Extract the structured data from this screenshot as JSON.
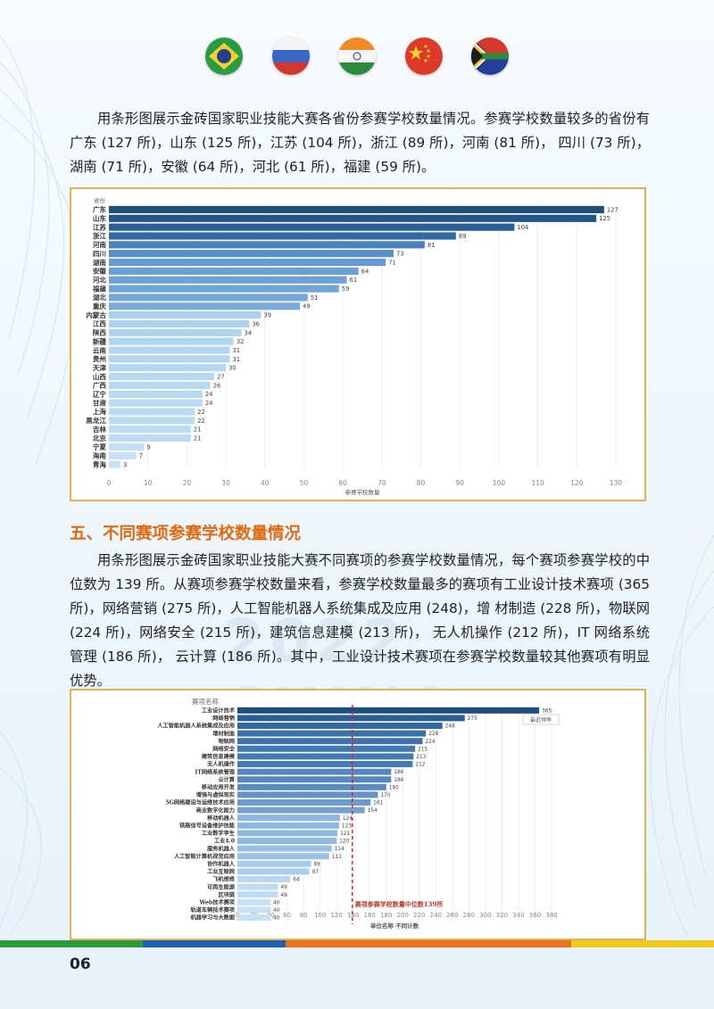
{
  "flags": [
    {
      "name": "brazil-flag-icon"
    },
    {
      "name": "russia-flag-icon"
    },
    {
      "name": "india-flag-icon"
    },
    {
      "name": "china-flag-icon"
    },
    {
      "name": "south-africa-flag-icon"
    }
  ],
  "paragraph1": "用条形图展示金砖国家职业技能大赛各省份参赛学校数量情况。参赛学校数量较多的省份有广东 (127 所)，山东 (125 所)，江苏 (104 所)，浙江 (89 所)，河南 (81 所)， 四川 (73 所)，湖南 (71 所)，安徽 (64 所)，河北 (61 所)，福建 (59 所)。",
  "section_title": "五、不同赛项参赛学校数量情况",
  "paragraph2": "用条形图展示金砖国家职业技能大赛不同赛项的参赛学校数量情况，每个赛项参赛学校的中位数为 139 所。从赛项参赛学校数量来看，参赛学校数量最多的赛项有工业设计技术赛项 (365 所)，网络营销 (275 所)，人工智能机器人系统集成及应用 (248)，增 材制造 (228 所)，物联网 (224 所)，网络安全 (215 所)，建筑信息建模 (213 所)， 无人机操作 (212 所)，IT 网络系统管理 (186 所)， 云计算 (186 所)。其中，工业设计技术赛项在参赛学校数量较其他赛项有明显优势。",
  "watermark": "2022 CHINA",
  "page_number": "06",
  "chart_data": [
    {
      "type": "bar",
      "orientation": "horizontal",
      "category_header": "省份",
      "xlabel": "参赛学校数量",
      "xlim": [
        0,
        130
      ],
      "xticks": [
        0,
        10,
        20,
        30,
        40,
        50,
        60,
        70,
        80,
        90,
        100,
        110,
        120,
        130
      ],
      "categories": [
        "广东",
        "山东",
        "江苏",
        "浙江",
        "河南",
        "四川",
        "湖南",
        "安徽",
        "河北",
        "福建",
        "湖北",
        "重庆",
        "内蒙古",
        "江西",
        "陕西",
        "新疆",
        "云南",
        "贵州",
        "天津",
        "山西",
        "广西",
        "辽宁",
        "甘肃",
        "上海",
        "黑龙江",
        "吉林",
        "北京",
        "宁夏",
        "海南",
        "青海"
      ],
      "values": [
        127,
        125,
        104,
        89,
        81,
        73,
        71,
        64,
        61,
        59,
        51,
        49,
        39,
        36,
        34,
        32,
        31,
        31,
        30,
        27,
        26,
        24,
        24,
        22,
        22,
        21,
        21,
        9,
        7,
        3
      ],
      "colors": [
        "#1f4e79",
        "#24558a",
        "#2b5f98",
        "#2e6aa8",
        "#4a82bf",
        "#5a8fca",
        "#6599d1",
        "#6a9ed4",
        "#6ea2d6",
        "#72a6d8",
        "#76a9d9",
        "#7aacdb",
        "#a9d0ee",
        "#acd2ef",
        "#aed4ef",
        "#b0d5f0",
        "#b2d6f0",
        "#b2d6f0",
        "#b4d7f1",
        "#b6d8f1",
        "#b7d9f2",
        "#b9daf2",
        "#b9daf2",
        "#bbdbf3",
        "#bbdbf3",
        "#bddcf3",
        "#bddcf3",
        "#c4e0f5",
        "#c6e1f5",
        "#c9e3f6"
      ]
    },
    {
      "type": "bar",
      "orientation": "horizontal",
      "category_header": "赛项名称",
      "xlabel": "单位名称 不同计数",
      "xlim": [
        0,
        380
      ],
      "xticks": [
        0,
        20,
        40,
        60,
        80,
        100,
        120,
        140,
        160,
        180,
        200,
        220,
        240,
        260,
        280,
        300,
        320,
        340,
        360,
        380
      ],
      "categories": [
        "工业设计技术",
        "网络营销",
        "人工智能机器人系统集成及应用",
        "增材制造",
        "物联网",
        "网络安全",
        "建筑信息建模",
        "无人机操作",
        "IT网络系统管理",
        "云计算",
        "移动应用开发",
        "增强与虚拟现实",
        "5G网络建设与运维技术应用",
        "商业数字化能力",
        "移动机器人",
        "铁路信号设备维护技能",
        "工业数字孪生",
        "工业4.0",
        "服务机器人",
        "人工智能计算机视觉应用",
        "协作机器人",
        "工业互联网",
        "飞机维修",
        "可再生能源",
        "区块链",
        "Web技术赛项",
        "轨道车辆技术赛项",
        "机器学习与大数据"
      ],
      "values": [
        365,
        275,
        248,
        228,
        224,
        215,
        213,
        212,
        186,
        186,
        180,
        170,
        161,
        154,
        124,
        123,
        121,
        120,
        114,
        111,
        89,
        87,
        64,
        49,
        49,
        40,
        40,
        40
      ],
      "median": 139,
      "median_label": "赛项参赛学校数量中位数139所",
      "tooltip": "最近频率",
      "colors": [
        "#1f4e79",
        "#2a5d96",
        "#3468a5",
        "#3c70ac",
        "#3e72ae",
        "#4478b3",
        "#4579b4",
        "#467ab5",
        "#5687c0",
        "#5687c0",
        "#5a8ac2",
        "#6592c7",
        "#6e99cb",
        "#75a0d0",
        "#8cb5df",
        "#8db6e0",
        "#8fb8e1",
        "#90b9e2",
        "#96bee6",
        "#99c0e7",
        "#a9ccee",
        "#abcdee",
        "#b7d6f2",
        "#c0dcf4",
        "#c0dcf4",
        "#c6e0f5",
        "#c6e0f5",
        "#c6e0f5"
      ]
    }
  ],
  "footer_colors": [
    "#2a9a3a",
    "#1d5fb0",
    "#e9721a",
    "#e9721a",
    "#f2c81e"
  ]
}
